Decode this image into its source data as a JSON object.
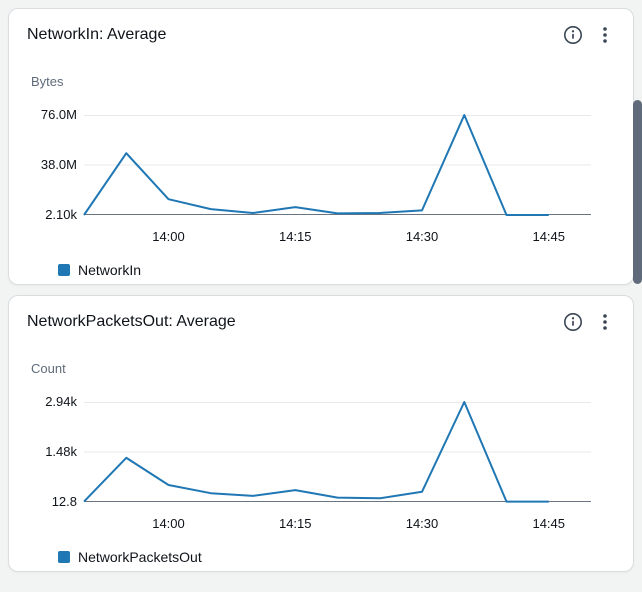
{
  "colors": {
    "line": "#1f77b4",
    "grid": "#e7e9eb",
    "axis": "#6b7581",
    "page_bg": "#f2f3f3",
    "card_bg": "#ffffff",
    "card_border": "#d9dde0",
    "text_dark": "#0f141a",
    "text_muted": "#5f6b7a",
    "scrollbar": "#5f6b7a"
  },
  "icons": {
    "info": "info-icon",
    "menu": "kebab-menu-icon"
  },
  "chart_data": [
    {
      "type": "line",
      "title": "NetworkIn: Average",
      "unit": "Bytes",
      "legend": "NetworkIn",
      "yticks": [
        "76.0M",
        "38.0M",
        "2.10k"
      ],
      "xticks": [
        "14:00",
        "14:15",
        "14:30",
        "14:45"
      ],
      "ylim": [
        0,
        76000000
      ],
      "x_minutes_range": [
        0,
        60
      ],
      "xtick_minutes": [
        10,
        25,
        40,
        55
      ],
      "grid": true,
      "legend_position": "bottom-left",
      "series": [
        {
          "name": "NetworkIn",
          "points_minutes": [
            0,
            5,
            10,
            15,
            20,
            25,
            30,
            35,
            40,
            45,
            50,
            55
          ],
          "values": [
            2100,
            47000000,
            12000000,
            4500000,
            1500000,
            6000000,
            1200000,
            1500000,
            3500000,
            76000000,
            2100,
            2100
          ]
        }
      ]
    },
    {
      "type": "line",
      "title": "NetworkPacketsOut: Average",
      "unit": "Count",
      "legend": "NetworkPacketsOut",
      "yticks": [
        "2.94k",
        "1.48k",
        "12.8"
      ],
      "xticks": [
        "14:00",
        "14:15",
        "14:30",
        "14:45"
      ],
      "ylim": [
        0,
        2940
      ],
      "x_minutes_range": [
        0,
        60
      ],
      "xtick_minutes": [
        10,
        25,
        40,
        55
      ],
      "grid": true,
      "legend_position": "bottom-left",
      "series": [
        {
          "name": "NetworkPacketsOut",
          "points_minutes": [
            0,
            5,
            10,
            15,
            20,
            25,
            30,
            35,
            40,
            45,
            50,
            55
          ],
          "values": [
            12.8,
            1300,
            500,
            260,
            180,
            350,
            130,
            110,
            300,
            2940,
            12.8,
            12.8
          ]
        }
      ]
    }
  ]
}
